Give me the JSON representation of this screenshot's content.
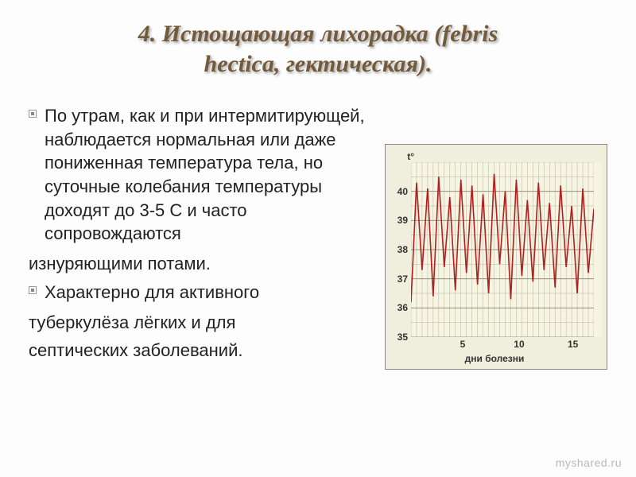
{
  "title": {
    "line1": "4. Истощающая лихорадка (febris",
    "line2": "hectica, гектическая).",
    "color": "#735a3a",
    "fontsize": 30
  },
  "body": {
    "fontsize": 22,
    "bullet1": "По утрам, как и при интермитирующей, наблюдается нормальная или даже пониженная температура тела, но суточные колебания температуры доходят до 3-5 С и часто сопровождаются",
    "cont1": "изнуряющими потами.",
    "bullet2": "Характерно для активного",
    "cont2": "туберкулёза лёгких и для",
    "cont3": "септических заболеваний."
  },
  "chart": {
    "type": "line",
    "background_color": "#f0eedc",
    "plot_background": "#f6f4e2",
    "grid_color": "#b8b49a",
    "line_color": "#b02020",
    "y_label": "t°",
    "y_ticks": [
      40,
      39,
      38,
      37,
      36,
      35
    ],
    "ylim": [
      35,
      41
    ],
    "x_ticks": [
      5,
      10,
      15
    ],
    "x_title": "дни болезни",
    "tick_fontsize": 12,
    "values": [
      36.2,
      40.3,
      37.3,
      40.1,
      36.4,
      40.5,
      37.4,
      39.8,
      36.6,
      40.4,
      37.2,
      40.2,
      36.8,
      39.9,
      36.5,
      40.6,
      37.5,
      40.0,
      36.3,
      40.4,
      37.1,
      39.7,
      36.9,
      40.3,
      37.3,
      39.6,
      36.7,
      40.2,
      37.4,
      39.5,
      36.5,
      40.1,
      37.2,
      39.4
    ]
  },
  "watermark": {
    "text": "myshared.ru",
    "fontsize": 14
  }
}
